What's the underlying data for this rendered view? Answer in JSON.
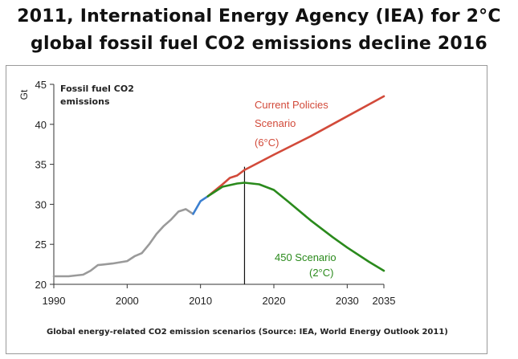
{
  "title_line1": "2011, International Energy Agency (IEA) for 2°C",
  "title_line2": "global fossil fuel CO2 emissions decline 2016",
  "colors": {
    "historical": "#9a9a9a",
    "recent": "#3b7fd0",
    "current_policies": "#d24a3a",
    "scenario_450": "#2a8a1c",
    "axis": "#333333"
  },
  "chart_data": {
    "type": "line",
    "ylabel_unit": "Gt",
    "ylabel": "Fossil fuel CO2 emissions",
    "xlim": [
      1990,
      2035
    ],
    "ylim": [
      20,
      45
    ],
    "x_ticks": [
      1990,
      2000,
      2010,
      2020,
      2030,
      2035
    ],
    "y_ticks": [
      20,
      25,
      30,
      35,
      40,
      45
    ],
    "vertical_marker_x": 2016,
    "grid": false,
    "series": [
      {
        "key": "historical",
        "x": [
          1990,
          1992,
          1994,
          1995,
          1996,
          1998,
          2000,
          2001,
          2002,
          2003,
          2004,
          2005,
          2006,
          2007,
          2008,
          2009
        ],
        "y": [
          21.0,
          21.0,
          21.2,
          21.7,
          22.4,
          22.6,
          22.9,
          23.5,
          23.9,
          25.0,
          26.3,
          27.3,
          28.1,
          29.1,
          29.4,
          28.8
        ]
      },
      {
        "key": "recent",
        "x": [
          2009,
          2010,
          2011
        ],
        "y": [
          28.8,
          30.4,
          31.0
        ]
      },
      {
        "key": "current_policies",
        "name": "Current Policies Scenario (6°C)",
        "x": [
          2011,
          2013,
          2014,
          2015,
          2016,
          2020,
          2025,
          2030,
          2035
        ],
        "y": [
          31.0,
          32.5,
          33.3,
          33.6,
          34.3,
          36.2,
          38.5,
          41.0,
          43.5
        ]
      },
      {
        "key": "scenario_450",
        "name": "450 Scenario (2°C)",
        "x": [
          2011,
          2013,
          2015,
          2016,
          2017,
          2018,
          2020,
          2022,
          2025,
          2028,
          2030,
          2033,
          2035
        ],
        "y": [
          31.0,
          32.2,
          32.6,
          32.7,
          32.6,
          32.5,
          31.8,
          30.3,
          28.0,
          25.9,
          24.6,
          22.8,
          21.7
        ]
      }
    ],
    "annotations": {
      "series_label": [
        "Fossil fuel CO2",
        "emissions"
      ],
      "current_policies": [
        "Current Policies",
        "Scenario",
        "(6°C)"
      ],
      "scenario_450": [
        "450 Scenario",
        "(2°C)"
      ]
    },
    "caption": "Global energy-related CO2 emission scenarios (Source: IEA, World Energy Outlook 2011)"
  }
}
